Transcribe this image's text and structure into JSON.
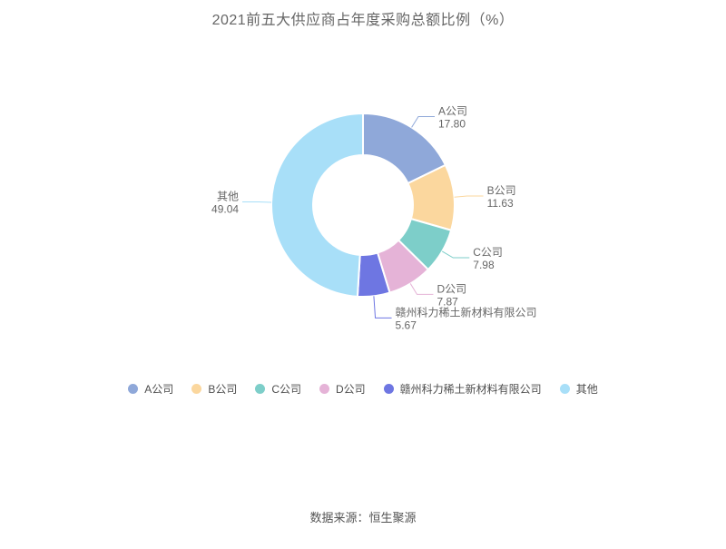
{
  "title": "2021前五大供应商占年度采购总额比例（%）",
  "footer": "数据来源：恒生聚源",
  "chart_data": {
    "type": "pie",
    "donut": true,
    "title": "2021前五大供应商占年度采购总额比例（%）",
    "legend_position": "bottom",
    "label_color": "#666666",
    "legend_text_color": "#4d4d4d",
    "border_color": "#ffffff",
    "unit": "%",
    "items": [
      {
        "label": "A公司",
        "value": 17.8,
        "display": "17.80",
        "color": "#8FA8D9"
      },
      {
        "label": "B公司",
        "value": 11.63,
        "display": "11.63",
        "color": "#FBD79E"
      },
      {
        "label": "C公司",
        "value": 7.98,
        "display": "7.98",
        "color": "#7DCEC9"
      },
      {
        "label": "D公司",
        "value": 7.87,
        "display": "7.87",
        "color": "#E5B3D7"
      },
      {
        "label": "赣州科力稀土新材料有限公司",
        "value": 5.67,
        "display": "5.67",
        "color": "#6E76E2"
      },
      {
        "label": "其他",
        "value": 49.04,
        "display": "49.04",
        "color": "#A8DFF8"
      }
    ]
  }
}
